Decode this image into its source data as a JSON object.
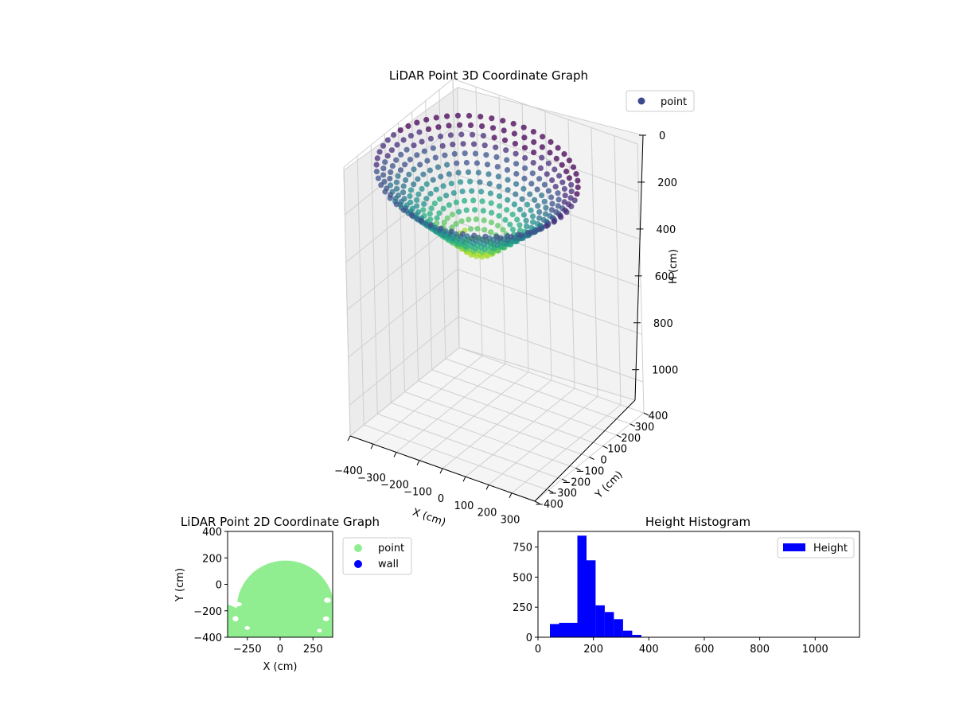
{
  "chart_data": [
    {
      "type": "scatter",
      "projection": "3d",
      "title": "LiDAR Point 3D Coordinate Graph",
      "xlabel": "X (cm)",
      "ylabel": "Y (cm)",
      "zlabel": "H (cm)",
      "xlim": [
        -400,
        400
      ],
      "ylim": [
        -400,
        400
      ],
      "zlim": [
        1130,
        0
      ],
      "x_ticks": [
        "−400",
        "−300",
        "−200",
        "−100",
        "0",
        "100",
        "200",
        "300"
      ],
      "y_ticks": [
        "−400",
        "−300",
        "−200",
        "−100",
        "0",
        "100",
        "200",
        "300",
        "400"
      ],
      "z_ticks": [
        "0",
        "200",
        "400",
        "600",
        "800",
        "1000"
      ],
      "z_inverted": true,
      "colormap": "viridis",
      "legend": {
        "labels": [
          "point"
        ],
        "location": "upper-right",
        "marker_color": "#3b4a8c"
      },
      "series": [
        {
          "name": "point",
          "description_values": "circular dome of points spanning X -400..400, Y -400..200, H ~30..380",
          "x_range": [
            -400,
            400
          ],
          "y_range": [
            -400,
            200
          ],
          "h_range": [
            30,
            380
          ]
        }
      ],
      "grid": true
    },
    {
      "type": "scatter",
      "title": "LiDAR Point 2D Coordinate Graph",
      "xlabel": "X (cm)",
      "ylabel": "Y (cm)",
      "xlim": [
        -400,
        400
      ],
      "ylim": [
        -400,
        400
      ],
      "x_ticks": [
        "−250",
        "0",
        "250"
      ],
      "y_ticks": [
        "400",
        "200",
        "0",
        "−200",
        "−400"
      ],
      "legend": {
        "labels": [
          "point",
          "wall"
        ],
        "location": "outside-right",
        "colors": [
          "#90ee90",
          "#0000ff"
        ]
      },
      "series": [
        {
          "name": "point",
          "color": "#90ee90",
          "shape": "filled dome: y from -400 up to ~180, x from -400 to 400 with edge gaps"
        },
        {
          "name": "wall",
          "color": "#0000ff",
          "points": []
        }
      ],
      "grid": false
    },
    {
      "type": "bar",
      "subtype": "histogram",
      "title": "Height Histogram",
      "xlabel": "",
      "ylabel": "",
      "xlim": [
        0,
        1160
      ],
      "ylim": [
        0,
        880
      ],
      "x_ticks": [
        "0",
        "200",
        "400",
        "600",
        "800",
        "1000"
      ],
      "y_ticks": [
        "0",
        "250",
        "500",
        "750"
      ],
      "legend": {
        "labels": [
          "Height"
        ],
        "location": "upper-right",
        "color": "#0000ff"
      },
      "bin_width": 33,
      "bins": [
        {
          "x0": 43,
          "count": 110
        },
        {
          "x0": 76,
          "count": 120
        },
        {
          "x0": 109,
          "count": 120
        },
        {
          "x0": 142,
          "count": 845
        },
        {
          "x0": 175,
          "count": 640
        },
        {
          "x0": 208,
          "count": 265
        },
        {
          "x0": 241,
          "count": 210
        },
        {
          "x0": 274,
          "count": 150
        },
        {
          "x0": 307,
          "count": 55
        },
        {
          "x0": 340,
          "count": 20
        },
        {
          "x0": 373,
          "count": 2
        },
        {
          "x0": 406,
          "count": 2
        },
        {
          "x0": 439,
          "count": 1
        },
        {
          "x0": 505,
          "count": 1
        },
        {
          "x0": 604,
          "count": 1
        },
        {
          "x0": 703,
          "count": 1
        },
        {
          "x0": 802,
          "count": 1
        },
        {
          "x0": 901,
          "count": 1
        },
        {
          "x0": 1000,
          "count": 1
        },
        {
          "x0": 1099,
          "count": 1
        }
      ],
      "series": [
        {
          "name": "Height",
          "color": "#0000ff"
        }
      ]
    }
  ]
}
